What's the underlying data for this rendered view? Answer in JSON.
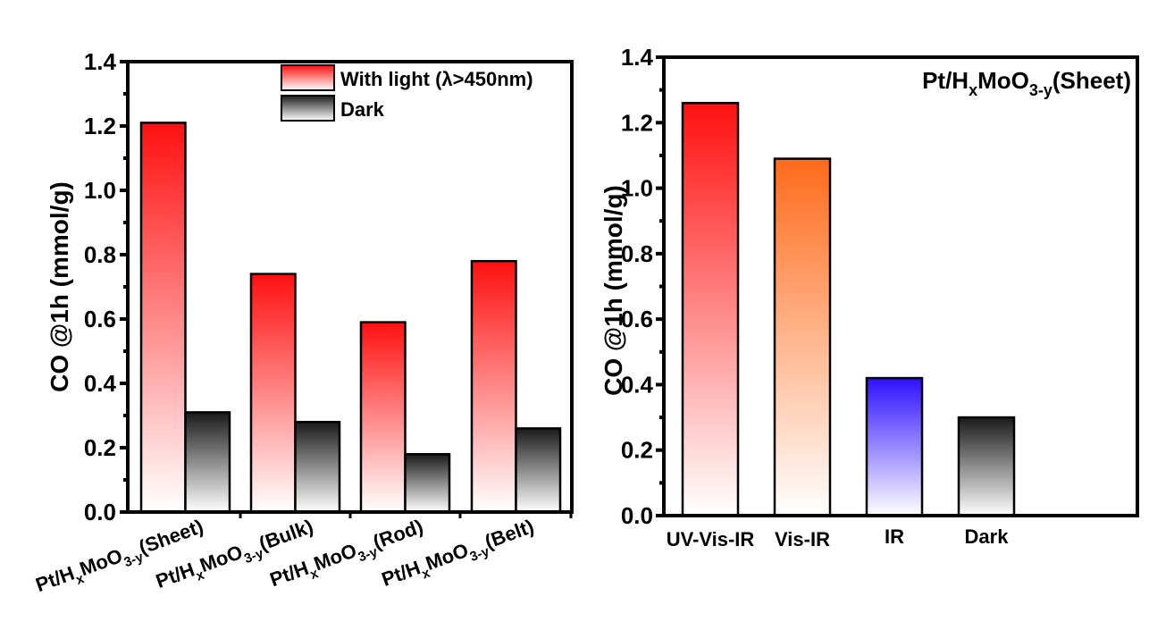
{
  "chart_data": [
    {
      "type": "bar",
      "title": "",
      "xlabel": "",
      "ylabel": "CO @1h (mmol/g)",
      "ylim": [
        0,
        1.4
      ],
      "yticks": [
        "0.0",
        "0.2",
        "0.4",
        "0.6",
        "0.8",
        "1.0",
        "1.2",
        "1.4"
      ],
      "categories": [
        {
          "base": "Pt/H",
          "sub1": "x",
          "mid": "MoO",
          "sub2": "3-y",
          "tail": "(Sheet)"
        },
        {
          "base": "Pt/H",
          "sub1": "x",
          "mid": "MoO",
          "sub2": "3-y",
          "tail": "(Bulk)"
        },
        {
          "base": "Pt/H",
          "sub1": "x",
          "mid": "MoO",
          "sub2": "3-y",
          "tail": "(Rod)"
        },
        {
          "base": "Pt/H",
          "sub1": "x",
          "mid": "MoO",
          "sub2": "3-y",
          "tail": "(Belt)"
        }
      ],
      "series": [
        {
          "name": "With light (λ>450nm)",
          "color": "#ff1010",
          "values": [
            1.21,
            0.74,
            0.59,
            0.78
          ]
        },
        {
          "name": "Dark",
          "color": "#1a1a1a",
          "values": [
            0.31,
            0.28,
            0.18,
            0.26
          ]
        }
      ],
      "legend_position": "top-right"
    },
    {
      "type": "bar",
      "title": {
        "base": "Pt/H",
        "sub1": "x",
        "mid": "MoO",
        "sub2": "3-y",
        "tail": "(Sheet)"
      },
      "xlabel": "",
      "ylabel": "CO @1h (mmol/g)",
      "ylim": [
        0,
        1.4
      ],
      "yticks": [
        "0.0",
        "0.2",
        "0.4",
        "0.6",
        "0.8",
        "1.0",
        "1.2",
        "1.4"
      ],
      "categories": [
        "UV-Vis-IR",
        "Vis-IR",
        "IR",
        "Dark"
      ],
      "values": [
        1.26,
        1.09,
        0.42,
        0.3
      ],
      "colors": [
        "#ff1010",
        "#ff6a1a",
        "#3010ff",
        "#1a1a1a"
      ]
    }
  ]
}
